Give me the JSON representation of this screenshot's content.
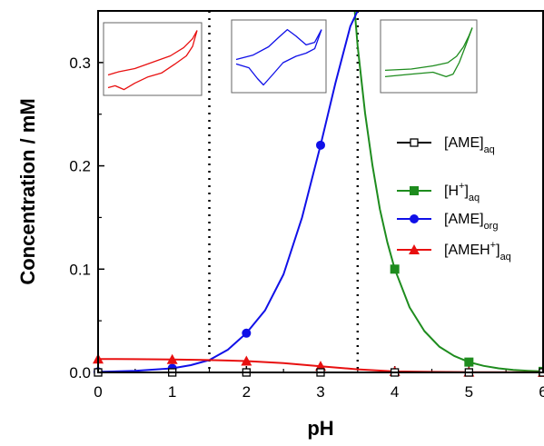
{
  "chart_data": {
    "type": "line",
    "xlabel": "pH",
    "ylabel": "Concentration / mM",
    "xlim": [
      0,
      6
    ],
    "ylim": [
      0,
      0.35
    ],
    "x_ticks": [
      "0",
      "1",
      "2",
      "3",
      "4",
      "5",
      "6"
    ],
    "y_ticks": [
      "0.0",
      "0.1",
      "0.2",
      "0.3"
    ],
    "y_tick_values": [
      0,
      0.1,
      0.2,
      0.3
    ],
    "grid": false,
    "legend_position": "right",
    "vertical_markers": [
      1.5,
      3.5
    ],
    "series": [
      {
        "name": "[AME]aq",
        "legend_main": "[AME]",
        "legend_sub": "aq",
        "legend_sup": "",
        "color": "#000000",
        "marker": "open-square",
        "x": [
          0,
          1,
          2,
          3,
          4,
          5,
          6
        ],
        "y": [
          0,
          0,
          0,
          0,
          0,
          0,
          0
        ],
        "curve_x": [
          0,
          6
        ],
        "curve_y": [
          0,
          0
        ]
      },
      {
        "name": "[H+]aq",
        "legend_main": "[H",
        "legend_sup": "+",
        "legend_close": "]",
        "legend_sub": "aq",
        "color": "#1e8c1e",
        "marker": "square",
        "x": [
          4,
          5,
          6
        ],
        "y": [
          0.1,
          0.01,
          0.001
        ],
        "curve_x": [
          3.46,
          3.5,
          3.6,
          3.7,
          3.8,
          3.9,
          4.0,
          4.2,
          4.4,
          4.6,
          4.8,
          5.0,
          5.2,
          5.4,
          5.6,
          5.8,
          6.0
        ],
        "curve_y": [
          0.35,
          0.316,
          0.251,
          0.2,
          0.158,
          0.126,
          0.1,
          0.063,
          0.04,
          0.025,
          0.016,
          0.01,
          0.0063,
          0.004,
          0.0025,
          0.0016,
          0.001
        ]
      },
      {
        "name": "[AME]org",
        "legend_main": "[AME]",
        "legend_sub": "org",
        "legend_sup": "",
        "color": "#1010e8",
        "marker": "circle",
        "x": [
          0,
          1,
          2,
          3
        ],
        "y": [
          0.0005,
          0.004,
          0.038,
          0.22
        ],
        "curve_x": [
          0,
          0.5,
          1.0,
          1.25,
          1.5,
          1.75,
          2.0,
          2.25,
          2.5,
          2.75,
          3.0,
          3.2,
          3.4,
          3.5
        ],
        "curve_y": [
          0.0005,
          0.0015,
          0.004,
          0.007,
          0.012,
          0.022,
          0.038,
          0.06,
          0.095,
          0.15,
          0.22,
          0.28,
          0.335,
          0.35
        ]
      },
      {
        "name": "[AMEH+]aq",
        "legend_main": "[AMEH",
        "legend_sup": "+",
        "legend_close": "]",
        "legend_sub": "aq",
        "color": "#e81010",
        "marker": "triangle",
        "x": [
          0,
          1,
          2,
          3,
          4,
          5,
          6
        ],
        "y": [
          0.013,
          0.0125,
          0.011,
          0.006,
          0.001,
          0.0003,
          0.0001
        ],
        "curve_x": [
          0,
          0.5,
          1.0,
          1.5,
          2.0,
          2.5,
          3.0,
          3.5,
          4.0,
          4.5,
          5.0,
          5.5,
          6.0
        ],
        "curve_y": [
          0.013,
          0.0128,
          0.0125,
          0.012,
          0.011,
          0.009,
          0.006,
          0.003,
          0.001,
          0.0005,
          0.0003,
          0.0002,
          0.0001
        ]
      }
    ],
    "insets": [
      {
        "color": "#e81010",
        "upper": [
          [
            0,
            0.75
          ],
          [
            0.12,
            0.7
          ],
          [
            0.3,
            0.65
          ],
          [
            0.5,
            0.55
          ],
          [
            0.7,
            0.45
          ],
          [
            0.85,
            0.32
          ],
          [
            0.95,
            0.18
          ],
          [
            1,
            0.05
          ]
        ],
        "lower": [
          [
            0,
            0.95
          ],
          [
            0.08,
            0.92
          ],
          [
            0.18,
            0.98
          ],
          [
            0.3,
            0.88
          ],
          [
            0.45,
            0.78
          ],
          [
            0.6,
            0.72
          ],
          [
            0.75,
            0.58
          ],
          [
            0.88,
            0.45
          ],
          [
            0.95,
            0.3
          ],
          [
            1,
            0.05
          ]
        ]
      },
      {
        "color": "#1010e8",
        "upper": [
          [
            0,
            0.55
          ],
          [
            0.2,
            0.48
          ],
          [
            0.38,
            0.35
          ],
          [
            0.5,
            0.2
          ],
          [
            0.6,
            0.08
          ],
          [
            0.7,
            0.18
          ],
          [
            0.82,
            0.32
          ],
          [
            0.92,
            0.28
          ],
          [
            1,
            0.08
          ]
        ],
        "lower": [
          [
            0,
            0.62
          ],
          [
            0.15,
            0.68
          ],
          [
            0.25,
            0.85
          ],
          [
            0.32,
            0.95
          ],
          [
            0.42,
            0.8
          ],
          [
            0.55,
            0.6
          ],
          [
            0.7,
            0.5
          ],
          [
            0.82,
            0.45
          ],
          [
            0.92,
            0.38
          ],
          [
            1,
            0.08
          ]
        ]
      },
      {
        "color": "#1e8c1e",
        "upper": [
          [
            0,
            0.72
          ],
          [
            0.3,
            0.7
          ],
          [
            0.55,
            0.65
          ],
          [
            0.72,
            0.6
          ],
          [
            0.82,
            0.5
          ],
          [
            0.9,
            0.35
          ],
          [
            0.96,
            0.18
          ],
          [
            1,
            0.05
          ]
        ],
        "lower": [
          [
            0,
            0.82
          ],
          [
            0.3,
            0.78
          ],
          [
            0.55,
            0.75
          ],
          [
            0.7,
            0.82
          ],
          [
            0.78,
            0.78
          ],
          [
            0.85,
            0.6
          ],
          [
            0.92,
            0.35
          ],
          [
            1,
            0.05
          ]
        ]
      }
    ]
  }
}
